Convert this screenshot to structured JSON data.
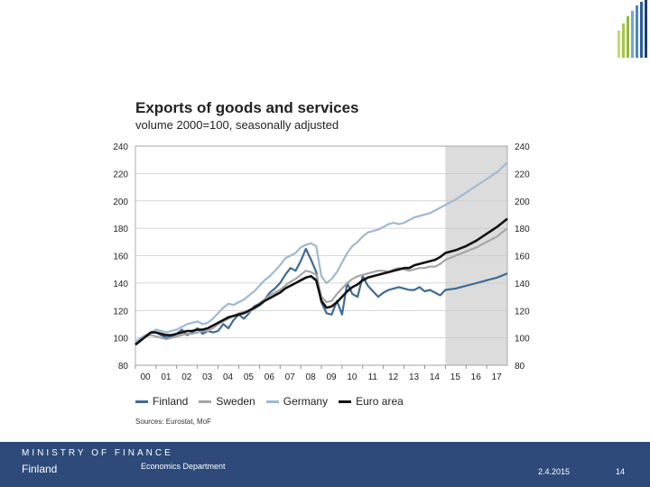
{
  "footer": {
    "ministry": "MINISTRY OF FINANCE",
    "country": "Finland",
    "department": "Economics Department",
    "date": "2.4.2015",
    "page": "14"
  },
  "chart_data": {
    "type": "line",
    "title": "Exports of goods and services",
    "subtitle": "volume 2000=100, seasonally adjusted",
    "source": "Sources: Eurostat, MoF",
    "ylim": [
      80,
      240
    ],
    "yticks": [
      80,
      100,
      120,
      140,
      160,
      180,
      200,
      220,
      240
    ],
    "xlim": [
      2000,
      2018
    ],
    "xticks": [
      {
        "year": 2000,
        "label": "00"
      },
      {
        "year": 2001,
        "label": "01"
      },
      {
        "year": 2002,
        "label": "02"
      },
      {
        "year": 2003,
        "label": "03"
      },
      {
        "year": 2004,
        "label": "04"
      },
      {
        "year": 2005,
        "label": "05"
      },
      {
        "year": 2006,
        "label": "06"
      },
      {
        "year": 2007,
        "label": "07"
      },
      {
        "year": 2008,
        "label": "08"
      },
      {
        "year": 2009,
        "label": "09"
      },
      {
        "year": 2010,
        "label": "10"
      },
      {
        "year": 2011,
        "label": "11"
      },
      {
        "year": 2012,
        "label": "12"
      },
      {
        "year": 2013,
        "label": "13"
      },
      {
        "year": 2014,
        "label": "14"
      },
      {
        "year": 2015,
        "label": "15"
      },
      {
        "year": 2016,
        "label": "16"
      },
      {
        "year": 2017,
        "label": "17"
      }
    ],
    "forecast_start": 2015,
    "series": [
      {
        "name": "Finland",
        "color": "#3f6b94",
        "x": [
          2000,
          2000.25,
          2000.5,
          2000.75,
          2001,
          2001.25,
          2001.5,
          2001.75,
          2002,
          2002.25,
          2002.5,
          2002.75,
          2003,
          2003.25,
          2003.5,
          2003.75,
          2004,
          2004.25,
          2004.5,
          2004.75,
          2005,
          2005.25,
          2005.5,
          2005.75,
          2006,
          2006.25,
          2006.5,
          2006.75,
          2007,
          2007.25,
          2007.5,
          2007.75,
          2008,
          2008.25,
          2008.5,
          2008.75,
          2009,
          2009.25,
          2009.5,
          2009.75,
          2010,
          2010.25,
          2010.5,
          2010.75,
          2011,
          2011.25,
          2011.5,
          2011.75,
          2012,
          2012.25,
          2012.5,
          2012.75,
          2013,
          2013.25,
          2013.5,
          2013.75,
          2014,
          2014.25,
          2014.5,
          2014.75,
          2015,
          2015.5,
          2016,
          2016.5,
          2017,
          2017.5,
          2018
        ],
        "values": [
          96,
          98,
          101,
          104,
          104,
          102,
          100,
          101,
          103,
          106,
          102,
          104,
          107,
          103,
          105,
          104,
          105,
          110,
          107,
          113,
          117,
          114,
          118,
          123,
          125,
          128,
          133,
          136,
          140,
          146,
          151,
          149,
          156,
          165,
          157,
          148,
          126,
          118,
          117,
          127,
          117,
          140,
          132,
          130,
          145,
          138,
          134,
          130,
          133,
          135,
          136,
          137,
          136,
          135,
          135,
          137,
          134,
          135,
          133,
          131,
          135,
          136,
          138,
          140,
          142,
          144,
          147
        ]
      },
      {
        "name": "Sweden",
        "color": "#a6a6a6",
        "x": [
          2000,
          2000.25,
          2000.5,
          2000.75,
          2001,
          2001.25,
          2001.5,
          2001.75,
          2002,
          2002.25,
          2002.5,
          2002.75,
          2003,
          2003.25,
          2003.5,
          2003.75,
          2004,
          2004.25,
          2004.5,
          2004.75,
          2005,
          2005.25,
          2005.5,
          2005.75,
          2006,
          2006.25,
          2006.5,
          2006.75,
          2007,
          2007.25,
          2007.5,
          2007.75,
          2008,
          2008.25,
          2008.5,
          2008.75,
          2009,
          2009.25,
          2009.5,
          2009.75,
          2010,
          2010.25,
          2010.5,
          2010.75,
          2011,
          2011.25,
          2011.5,
          2011.75,
          2012,
          2012.25,
          2012.5,
          2012.75,
          2013,
          2013.25,
          2013.5,
          2013.75,
          2014,
          2014.25,
          2014.5,
          2014.75,
          2015,
          2015.5,
          2016,
          2016.5,
          2017,
          2017.5,
          2018
        ],
        "values": [
          97,
          99,
          101,
          102,
          101,
          100,
          99,
          100,
          101,
          102,
          103,
          103,
          104,
          105,
          105,
          107,
          110,
          112,
          114,
          116,
          118,
          119,
          119,
          121,
          124,
          128,
          131,
          133,
          135,
          138,
          141,
          143,
          146,
          149,
          148,
          146,
          130,
          126,
          127,
          132,
          136,
          140,
          143,
          145,
          146,
          147,
          148,
          149,
          149,
          148,
          150,
          151,
          150,
          149,
          150,
          151,
          151,
          152,
          152,
          154,
          157,
          160,
          163,
          166,
          170,
          174,
          180
        ]
      },
      {
        "name": "Germany",
        "color": "#9fb9d2",
        "x": [
          2000,
          2000.25,
          2000.5,
          2000.75,
          2001,
          2001.25,
          2001.5,
          2001.75,
          2002,
          2002.25,
          2002.5,
          2002.75,
          2003,
          2003.25,
          2003.5,
          2003.75,
          2004,
          2004.25,
          2004.5,
          2004.75,
          2005,
          2005.25,
          2005.5,
          2005.75,
          2006,
          2006.25,
          2006.5,
          2006.75,
          2007,
          2007.25,
          2007.5,
          2007.75,
          2008,
          2008.25,
          2008.5,
          2008.75,
          2009,
          2009.25,
          2009.5,
          2009.75,
          2010,
          2010.25,
          2010.5,
          2010.75,
          2011,
          2011.25,
          2011.5,
          2011.75,
          2012,
          2012.25,
          2012.5,
          2012.75,
          2013,
          2013.25,
          2013.5,
          2013.75,
          2014,
          2014.25,
          2014.5,
          2014.75,
          2015,
          2015.5,
          2016,
          2016.5,
          2017,
          2017.5,
          2018
        ],
        "values": [
          97,
          100,
          102,
          104,
          106,
          105,
          104,
          105,
          106,
          108,
          110,
          111,
          112,
          110,
          111,
          114,
          118,
          122,
          125,
          124,
          126,
          128,
          131,
          134,
          138,
          142,
          145,
          149,
          153,
          158,
          160,
          162,
          166,
          168,
          169,
          167,
          145,
          140,
          143,
          148,
          155,
          162,
          167,
          170,
          174,
          177,
          178,
          179,
          181,
          183,
          184,
          183,
          184,
          186,
          188,
          189,
          190,
          191,
          193,
          195,
          197,
          201,
          206,
          211,
          216,
          221,
          228
        ]
      },
      {
        "name": "Euro area",
        "color": "#111111",
        "x": [
          2000,
          2000.25,
          2000.5,
          2000.75,
          2001,
          2001.25,
          2001.5,
          2001.75,
          2002,
          2002.25,
          2002.5,
          2002.75,
          2003,
          2003.25,
          2003.5,
          2003.75,
          2004,
          2004.25,
          2004.5,
          2004.75,
          2005,
          2005.25,
          2005.5,
          2005.75,
          2006,
          2006.25,
          2006.5,
          2006.75,
          2007,
          2007.25,
          2007.5,
          2007.75,
          2008,
          2008.25,
          2008.5,
          2008.75,
          2009,
          2009.25,
          2009.5,
          2009.75,
          2010,
          2010.25,
          2010.5,
          2010.75,
          2011,
          2011.25,
          2011.5,
          2011.75,
          2012,
          2012.25,
          2012.5,
          2012.75,
          2013,
          2013.25,
          2013.5,
          2013.75,
          2014,
          2014.25,
          2014.5,
          2014.75,
          2015,
          2015.5,
          2016,
          2016.5,
          2017,
          2017.5,
          2018
        ],
        "values": [
          95,
          98,
          101,
          104,
          104,
          103,
          102,
          102,
          103,
          104,
          105,
          105,
          106,
          106,
          107,
          109,
          111,
          113,
          115,
          116,
          117,
          118,
          120,
          122,
          124,
          127,
          129,
          131,
          133,
          136,
          138,
          140,
          142,
          144,
          145,
          142,
          127,
          122,
          123,
          126,
          130,
          134,
          137,
          139,
          142,
          144,
          145,
          146,
          147,
          148,
          149,
          150,
          151,
          151,
          153,
          154,
          155,
          156,
          157,
          159,
          162,
          164,
          167,
          171,
          176,
          181,
          187
        ]
      }
    ]
  }
}
